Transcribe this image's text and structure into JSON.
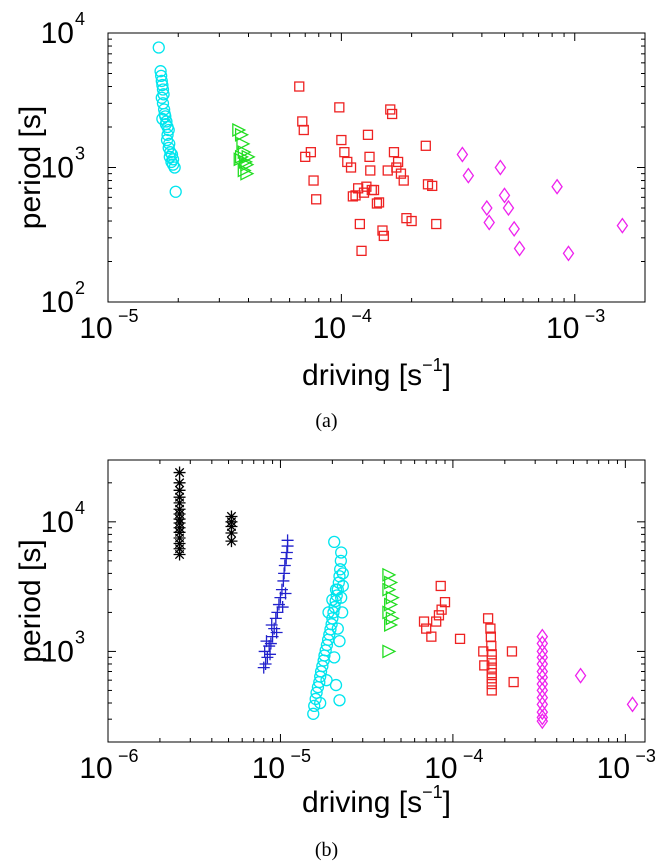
{
  "chart_data": [
    {
      "type": "scatter",
      "panel_label": "(a)",
      "xlabel": "driving [s^-1]",
      "ylabel": "period [s]",
      "xscale": "log",
      "yscale": "log",
      "xlim": [
        1e-05,
        0.002
      ],
      "ylim": [
        100,
        10000
      ],
      "x_ticks": [
        {
          "base": "10",
          "exp": "−5",
          "value": 1e-05
        },
        {
          "base": "10",
          "exp": "−4",
          "value": 0.0001
        },
        {
          "base": "10",
          "exp": "−3",
          "value": 0.001
        }
      ],
      "y_ticks": [
        {
          "base": "10",
          "exp": "2",
          "value": 100
        },
        {
          "base": "10",
          "exp": "3",
          "value": 1000
        },
        {
          "base": "10",
          "exp": "4",
          "value": 10000
        }
      ],
      "grid": false,
      "series": [
        {
          "marker": "circle",
          "color": "#00e5ee",
          "points": [
            [
              1.65e-05,
              7800
            ],
            [
              1.68e-05,
              5200
            ],
            [
              1.69e-05,
              4800
            ],
            [
              1.7e-05,
              4400
            ],
            [
              1.71e-05,
              4100
            ],
            [
              1.72e-05,
              3800
            ],
            [
              1.73e-05,
              3500
            ],
            [
              1.7e-05,
              3300
            ],
            [
              1.72e-05,
              3000
            ],
            [
              1.74e-05,
              2700
            ],
            [
              1.75e-05,
              2500
            ],
            [
              1.71e-05,
              2300
            ],
            [
              1.78e-05,
              2200
            ],
            [
              1.8e-05,
              2000
            ],
            [
              1.82e-05,
              1900
            ],
            [
              1.8e-05,
              1750
            ],
            [
              1.79e-05,
              1600
            ],
            [
              1.83e-05,
              1500
            ],
            [
              1.82e-05,
              1400
            ],
            [
              1.85e-05,
              1300
            ],
            [
              1.84e-05,
              1200
            ],
            [
              1.87e-05,
              1100
            ],
            [
              1.9e-05,
              1050
            ],
            [
              1.93e-05,
              1000
            ],
            [
              1.9e-05,
              1150
            ],
            [
              1.88e-05,
              1250
            ],
            [
              1.95e-05,
              660
            ],
            [
              1.76e-05,
              2400
            ],
            [
              1.77e-05,
              2100
            ]
          ]
        },
        {
          "marker": "triangle-right",
          "color": "#22dd22",
          "points": [
            [
              3.6e-05,
              1900
            ],
            [
              3.7e-05,
              1750
            ],
            [
              3.75e-05,
              1500
            ],
            [
              3.8e-05,
              1300
            ],
            [
              3.7e-05,
              1200
            ],
            [
              3.85e-05,
              1100
            ],
            [
              3.9e-05,
              1050
            ],
            [
              3.8e-05,
              950
            ],
            [
              3.9e-05,
              900
            ],
            [
              3.65e-05,
              1150
            ],
            [
              3.95e-05,
              1200
            ]
          ]
        },
        {
          "marker": "square",
          "color": "#ee2222",
          "points": [
            [
              6.6e-05,
              4000
            ],
            [
              6.8e-05,
              2200
            ],
            [
              6.9e-05,
              1900
            ],
            [
              7e-05,
              1200
            ],
            [
              7.4e-05,
              1300
            ],
            [
              7.6e-05,
              800
            ],
            [
              7.8e-05,
              580
            ],
            [
              9.8e-05,
              2800
            ],
            [
              0.0001,
              1600
            ],
            [
              0.000103,
              1300
            ],
            [
              0.00011,
              1000
            ],
            [
              0.000115,
              620
            ],
            [
              0.000118,
              700
            ],
            [
              0.00012,
              380
            ],
            [
              0.000122,
              240
            ],
            [
              0.000125,
              650
            ],
            [
              0.000128,
              720
            ],
            [
              0.00013,
              1750
            ],
            [
              0.000132,
              1200
            ],
            [
              0.000133,
              950
            ],
            [
              0.000135,
              680
            ],
            [
              0.000138,
              680
            ],
            [
              0.000142,
              540
            ],
            [
              0.000145,
              550
            ],
            [
              0.00015,
              340
            ],
            [
              0.000152,
              310
            ],
            [
              0.000158,
              950
            ],
            [
              0.000162,
              2700
            ],
            [
              0.000165,
              2500
            ],
            [
              0.000168,
              1300
            ],
            [
              0.000172,
              1000
            ],
            [
              0.000175,
              1100
            ],
            [
              0.00018,
              900
            ],
            [
              0.000185,
              800
            ],
            [
              0.00019,
              420
            ],
            [
              0.0002,
              400
            ],
            [
              0.00023,
              1450
            ],
            [
              0.000235,
              750
            ],
            [
              0.000245,
              730
            ],
            [
              0.000255,
              380
            ],
            [
              0.000112,
              610
            ],
            [
              0.000106,
              1100
            ]
          ]
        },
        {
          "marker": "diamond",
          "color": "#ee22ee",
          "points": [
            [
              0.00033,
              1250
            ],
            [
              0.00035,
              870
            ],
            [
              0.00042,
              500
            ],
            [
              0.00043,
              390
            ],
            [
              0.00048,
              1000
            ],
            [
              0.0005,
              620
            ],
            [
              0.00052,
              500
            ],
            [
              0.00055,
              350
            ],
            [
              0.00058,
              250
            ],
            [
              0.00084,
              720
            ],
            [
              0.00094,
              230
            ],
            [
              0.0016,
              370
            ]
          ]
        }
      ]
    },
    {
      "type": "scatter",
      "panel_label": "(b)",
      "xlabel": "driving [s^-1]",
      "ylabel": "period [s]",
      "xscale": "log",
      "yscale": "log",
      "xlim": [
        1e-06,
        0.0013
      ],
      "ylim": [
        200,
        30000
      ],
      "x_ticks": [
        {
          "base": "10",
          "exp": "−6",
          "value": 1e-06
        },
        {
          "base": "10",
          "exp": "−5",
          "value": 1e-05
        },
        {
          "base": "10",
          "exp": "−4",
          "value": 0.0001
        },
        {
          "base": "10",
          "exp": "−3",
          "value": 0.001
        }
      ],
      "y_ticks": [
        {
          "base": "10",
          "exp": "3",
          "value": 1000
        },
        {
          "base": "10",
          "exp": "4",
          "value": 10000
        }
      ],
      "grid": false,
      "series": [
        {
          "marker": "asterisk",
          "color": "#000000",
          "points": [
            [
              2.6e-06,
              24000
            ],
            [
              2.6e-06,
              20000
            ],
            [
              2.6e-06,
              17500
            ],
            [
              2.6e-06,
              15500
            ],
            [
              2.6e-06,
              14000
            ],
            [
              2.6e-06,
              12500
            ],
            [
              2.6e-06,
              11500
            ],
            [
              2.6e-06,
              10500
            ],
            [
              2.6e-06,
              9800
            ],
            [
              2.6e-06,
              9000
            ],
            [
              2.6e-06,
              8300
            ],
            [
              2.6e-06,
              7500
            ],
            [
              2.6e-06,
              6800
            ],
            [
              2.6e-06,
              6200
            ],
            [
              2.6e-06,
              5600
            ],
            [
              5.2e-06,
              11000
            ],
            [
              5.2e-06,
              10000
            ],
            [
              5.2e-06,
              9200
            ],
            [
              5.2e-06,
              8200
            ],
            [
              5.2e-06,
              7100
            ]
          ]
        },
        {
          "marker": "plus",
          "color": "#2222cc",
          "points": [
            [
              8e-06,
              750
            ],
            [
              8.2e-06,
              800
            ],
            [
              8.4e-06,
              900
            ],
            [
              8.1e-06,
              1000
            ],
            [
              8.6e-06,
              1100
            ],
            [
              8.3e-06,
              1200
            ],
            [
              8.8e-06,
              1150
            ],
            [
              9e-06,
              1300
            ],
            [
              9.2e-06,
              1500
            ],
            [
              8.9e-06,
              1600
            ],
            [
              9.4e-06,
              1800
            ],
            [
              9.6e-06,
              2000
            ],
            [
              9.8e-06,
              2300
            ],
            [
              1e-05,
              2600
            ],
            [
              1.02e-05,
              3000
            ],
            [
              1.04e-05,
              3500
            ],
            [
              1.05e-05,
              4000
            ],
            [
              1.06e-05,
              4600
            ],
            [
              1.08e-05,
              5200
            ],
            [
              1.09e-05,
              5800
            ],
            [
              1.1e-05,
              6500
            ],
            [
              1.1e-05,
              7200
            ],
            [
              1.07e-05,
              2800
            ],
            [
              1.03e-05,
              2200
            ],
            [
              9.5e-06,
              1400
            ],
            [
              8.7e-06,
              950
            ]
          ]
        },
        {
          "marker": "circle",
          "color": "#00e5ee",
          "points": [
            [
              1.55e-05,
              330
            ],
            [
              1.57e-05,
              380
            ],
            [
              1.6e-05,
              430
            ],
            [
              1.62e-05,
              480
            ],
            [
              1.65e-05,
              530
            ],
            [
              1.68e-05,
              580
            ],
            [
              1.7e-05,
              640
            ],
            [
              1.72e-05,
              700
            ],
            [
              1.75e-05,
              770
            ],
            [
              1.78e-05,
              850
            ],
            [
              1.8e-05,
              930
            ],
            [
              1.83e-05,
              1020
            ],
            [
              1.86e-05,
              1120
            ],
            [
              1.89e-05,
              1230
            ],
            [
              1.92e-05,
              1350
            ],
            [
              1.95e-05,
              1480
            ],
            [
              1.98e-05,
              1620
            ],
            [
              2e-05,
              1800
            ],
            [
              2.03e-05,
              2000
            ],
            [
              2.06e-05,
              2200
            ],
            [
              2.09e-05,
              2450
            ],
            [
              2.12e-05,
              2700
            ],
            [
              2.15e-05,
              3000
            ],
            [
              2.18e-05,
              3400
            ],
            [
              2.2e-05,
              3800
            ],
            [
              2.22e-05,
              4300
            ],
            [
              2.24e-05,
              5000
            ],
            [
              2.25e-05,
              5800
            ],
            [
              2.05e-05,
              7000
            ],
            [
              2.1e-05,
              550
            ],
            [
              2.2e-05,
              420
            ],
            [
              1.9e-05,
              2000
            ],
            [
              2e-05,
              2500
            ],
            [
              2.1e-05,
              3000
            ],
            [
              2.15e-05,
              1500
            ],
            [
              2.25e-05,
              2600
            ],
            [
              2.3e-05,
              4000
            ],
            [
              1.7e-05,
              400
            ],
            [
              1.85e-05,
              600
            ],
            [
              2.05e-05,
              900
            ],
            [
              2.2e-05,
              1200
            ],
            [
              2.28e-05,
              2000
            ],
            [
              2.3e-05,
              3200
            ]
          ]
        },
        {
          "marker": "triangle-right",
          "color": "#22dd22",
          "points": [
            [
              4.2e-05,
              3900
            ],
            [
              4.3e-05,
              3400
            ],
            [
              4.2e-05,
              3000
            ],
            [
              4.4e-05,
              2600
            ],
            [
              4.3e-05,
              2300
            ],
            [
              4.2e-05,
              2000
            ],
            [
              4.4e-05,
              1800
            ],
            [
              4.3e-05,
              1600
            ],
            [
              4.2e-05,
              1000
            ]
          ]
        },
        {
          "marker": "square",
          "color": "#ee2222",
          "points": [
            [
              6.8e-05,
              1700
            ],
            [
              7e-05,
              1500
            ],
            [
              7.5e-05,
              1300
            ],
            [
              8e-05,
              1700
            ],
            [
              8.3e-05,
              1900
            ],
            [
              8.5e-05,
              3200
            ],
            [
              8.6e-05,
              2100
            ],
            [
              9e-05,
              2400
            ],
            [
              0.00011,
              1250
            ],
            [
              0.00015,
              1000
            ],
            [
              0.000152,
              780
            ],
            [
              0.00016,
              1800
            ],
            [
              0.000165,
              1500
            ],
            [
              0.000166,
              1300
            ],
            [
              0.000167,
              1100
            ],
            [
              0.000168,
              950
            ],
            [
              0.000168,
              850
            ],
            [
              0.000168,
              750
            ],
            [
              0.000168,
              680
            ],
            [
              0.000168,
              620
            ],
            [
              0.000168,
              560
            ],
            [
              0.000168,
              500
            ],
            [
              0.00022,
              1000
            ],
            [
              0.000225,
              580
            ]
          ]
        },
        {
          "marker": "diamond",
          "color": "#ee22ee",
          "points": [
            [
              0.00033,
              1300
            ],
            [
              0.00033,
              1150
            ],
            [
              0.00033,
              1000
            ],
            [
              0.00033,
              900
            ],
            [
              0.00033,
              800
            ],
            [
              0.00033,
              700
            ],
            [
              0.00033,
              630
            ],
            [
              0.00033,
              560
            ],
            [
              0.00033,
              500
            ],
            [
              0.00033,
              440
            ],
            [
              0.00033,
              390
            ],
            [
              0.00033,
              340
            ],
            [
              0.00033,
              310
            ],
            [
              0.00033,
              290
            ],
            [
              0.00055,
              650
            ],
            [
              0.0011,
              390
            ]
          ]
        }
      ]
    }
  ]
}
